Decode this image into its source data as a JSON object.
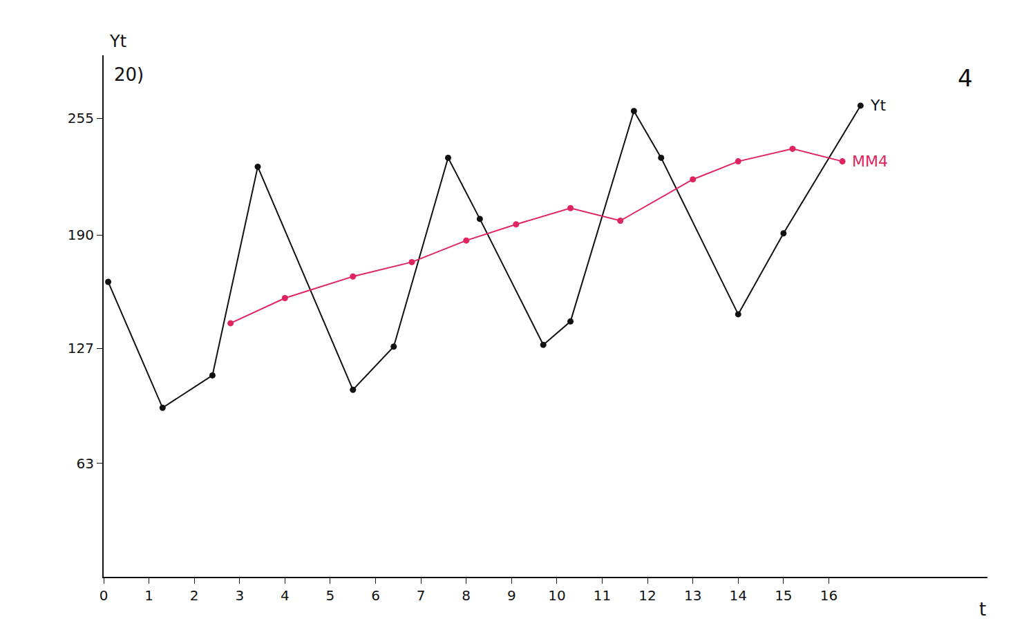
{
  "chart_data": {
    "type": "line",
    "x_label": "t",
    "y_label": "Yt",
    "annotations": [
      "20)",
      "4"
    ],
    "xlim": [
      0,
      19.5
    ],
    "ylim": [
      0,
      290
    ],
    "xticks": [
      0,
      1,
      2,
      3,
      4,
      5,
      6,
      7,
      8,
      9,
      10,
      11,
      12,
      13,
      14,
      15,
      16
    ],
    "yticks": [
      63,
      127,
      190,
      255
    ],
    "grid": false,
    "series": [
      {
        "name": "Yt",
        "color": "#111111",
        "marker": "circle",
        "line_style": "solid",
        "x": [
          0.1,
          1.3,
          2.4,
          3.4,
          5.5,
          6.4,
          7.6,
          8.3,
          9.7,
          10.3,
          11.7,
          12.3,
          14.0,
          15.0,
          16.7
        ],
        "values": [
          164,
          94,
          112,
          228,
          104,
          128,
          233,
          199,
          129,
          142,
          259,
          233,
          146,
          191,
          262
        ]
      },
      {
        "name": "MM4",
        "color": "#e0245e",
        "marker": "circle",
        "line_style": "solid",
        "x": [
          2.8,
          4.0,
          5.5,
          6.8,
          8.0,
          9.1,
          10.3,
          11.4,
          13.0,
          14.0,
          15.2,
          16.3
        ],
        "values": [
          141,
          155,
          167,
          175,
          187,
          196,
          205,
          198,
          221,
          231,
          238,
          231
        ]
      }
    ]
  }
}
